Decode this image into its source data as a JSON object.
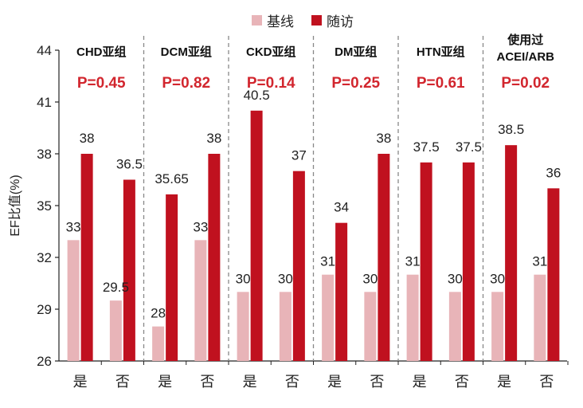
{
  "chart_data": {
    "type": "bar",
    "ylabel": "EF比值(%)",
    "ylim": [
      26,
      44
    ],
    "yticks": [
      26,
      29,
      32,
      35,
      38,
      41,
      44
    ],
    "legend": {
      "position": "top-center"
    },
    "grid": false,
    "colors": {
      "baseline": "#e8b4b8",
      "followup": "#c0111f",
      "pvalue": "#d2262e",
      "divider": "#888888"
    },
    "series": [
      {
        "name": "基线",
        "values": [
          33,
          29.5,
          28,
          33,
          30,
          30,
          31,
          30,
          31,
          30,
          30,
          31
        ]
      },
      {
        "name": "随访",
        "values": [
          38,
          36.5,
          35.65,
          38,
          40.5,
          37,
          34,
          38,
          37.5,
          37.5,
          38.5,
          36
        ]
      }
    ],
    "categories": [
      "是",
      "否",
      "是",
      "否",
      "是",
      "否",
      "是",
      "否",
      "是",
      "否",
      "是",
      "否"
    ],
    "groups": [
      {
        "title_lines": [
          "CHD亚组"
        ],
        "p_value": "P=0.45"
      },
      {
        "title_lines": [
          "DCM亚组"
        ],
        "p_value": "P=0.82"
      },
      {
        "title_lines": [
          "CKD亚组"
        ],
        "p_value": "P=0.14"
      },
      {
        "title_lines": [
          "DM亚组"
        ],
        "p_value": "P=0.25"
      },
      {
        "title_lines": [
          "HTN亚组"
        ],
        "p_value": "P=0.61"
      },
      {
        "title_lines": [
          "使用过",
          "ACEI/ARB"
        ],
        "p_value": "P=0.02"
      }
    ]
  }
}
